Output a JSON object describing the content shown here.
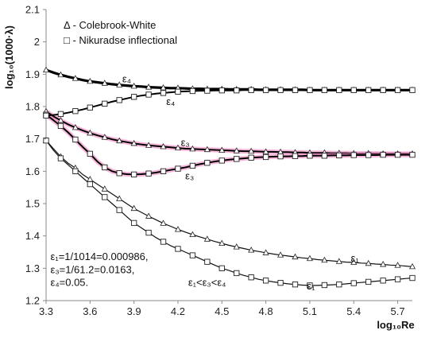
{
  "chart_data": {
    "type": "line",
    "xlabel": "log₁₀Re",
    "ylabel": "log₁₀(1000·λ)",
    "xlim": [
      3.3,
      5.8
    ],
    "ylim": [
      1.2,
      2.1
    ],
    "xticks": [
      "3.3",
      "3.6",
      "3.9",
      "4.2",
      "4.5",
      "4.8",
      "5.1",
      "5.4",
      "5.7"
    ],
    "xtick_values": [
      3.3,
      3.6,
      3.9,
      4.2,
      4.5,
      4.8,
      5.1,
      5.4,
      5.7
    ],
    "yticks": [
      "1.2",
      "1.3",
      "1.4",
      "1.5",
      "1.6",
      "1.7",
      "1.8",
      "1.9",
      "2",
      "2.1"
    ],
    "ytick_values": [
      1.2,
      1.3,
      1.4,
      1.5,
      1.6,
      1.7,
      1.8,
      1.9,
      2.0,
      2.1
    ],
    "grid": false,
    "legend": {
      "position": "top-left",
      "entries": [
        {
          "marker": "triangle",
          "label": "Δ - Colebrook-White"
        },
        {
          "marker": "square",
          "label": "□ - Nikuradse inflectional"
        }
      ]
    },
    "series": [
      {
        "marker": "triangle",
        "line_color": "#111111",
        "halo_color": "",
        "line_width": 1.2,
        "x": [
          3.3,
          3.35,
          3.4,
          3.45,
          3.5,
          3.55,
          3.6,
          3.65,
          3.7,
          3.75,
          3.8,
          3.85,
          3.9,
          3.95,
          4.0,
          4.05,
          4.1,
          4.15,
          4.2,
          4.25,
          4.3,
          4.35,
          4.4,
          4.45,
          4.5,
          4.55,
          4.6,
          4.65,
          4.7,
          4.75,
          4.8,
          4.85,
          4.9,
          4.95,
          5.0,
          5.05,
          5.1,
          5.15,
          5.2,
          5.25,
          5.3,
          5.35,
          5.4,
          5.45,
          5.5,
          5.55,
          5.6,
          5.65,
          5.7,
          5.75,
          5.8
        ],
        "y": [
          1.695,
          1.67,
          1.645,
          1.625,
          1.61,
          1.59,
          1.575,
          1.56,
          1.545,
          1.53,
          1.515,
          1.5,
          1.485,
          1.473,
          1.461,
          1.45,
          1.439,
          1.43,
          1.42,
          1.412,
          1.404,
          1.397,
          1.39,
          1.383,
          1.377,
          1.371,
          1.366,
          1.361,
          1.356,
          1.352,
          1.348,
          1.344,
          1.341,
          1.338,
          1.335,
          1.332,
          1.33,
          1.327,
          1.325,
          1.323,
          1.321,
          1.319,
          1.318,
          1.316,
          1.315,
          1.313,
          1.312,
          1.31,
          1.309,
          1.307,
          1.305
        ]
      },
      {
        "marker": "square",
        "line_color": "#111111",
        "halo_color": "",
        "line_width": 1.2,
        "x": [
          3.3,
          3.35,
          3.4,
          3.45,
          3.5,
          3.55,
          3.6,
          3.65,
          3.7,
          3.75,
          3.8,
          3.85,
          3.9,
          3.95,
          4.0,
          4.05,
          4.1,
          4.15,
          4.2,
          4.25,
          4.3,
          4.35,
          4.4,
          4.45,
          4.5,
          4.55,
          4.6,
          4.65,
          4.7,
          4.75,
          4.8,
          4.85,
          4.9,
          4.95,
          5.0,
          5.05,
          5.1,
          5.15,
          5.2,
          5.25,
          5.3,
          5.35,
          5.4,
          5.45,
          5.5,
          5.55,
          5.6,
          5.65,
          5.7,
          5.75,
          5.8
        ],
        "y": [
          1.695,
          1.665,
          1.64,
          1.62,
          1.6,
          1.58,
          1.56,
          1.54,
          1.52,
          1.5,
          1.48,
          1.46,
          1.44,
          1.425,
          1.41,
          1.395,
          1.382,
          1.37,
          1.36,
          1.35,
          1.34,
          1.33,
          1.32,
          1.31,
          1.3,
          1.293,
          1.285,
          1.278,
          1.272,
          1.266,
          1.262,
          1.258,
          1.255,
          1.252,
          1.25,
          1.248,
          1.247,
          1.247,
          1.248,
          1.249,
          1.25,
          1.252,
          1.254,
          1.256,
          1.258,
          1.26,
          1.262,
          1.264,
          1.266,
          1.268,
          1.27
        ]
      },
      {
        "marker": "triangle",
        "line_color": "#000000",
        "halo_color": "#f07ec0",
        "line_width": 2,
        "x": [
          3.3,
          3.35,
          3.4,
          3.45,
          3.5,
          3.55,
          3.6,
          3.65,
          3.7,
          3.75,
          3.8,
          3.85,
          3.9,
          3.95,
          4.0,
          4.05,
          4.1,
          4.15,
          4.2,
          4.25,
          4.3,
          4.35,
          4.4,
          4.45,
          4.5,
          4.55,
          4.6,
          4.65,
          4.7,
          4.75,
          4.8,
          4.85,
          4.9,
          4.95,
          5.0,
          5.05,
          5.1,
          5.15,
          5.2,
          5.25,
          5.3,
          5.35,
          5.4,
          5.45,
          5.5,
          5.55,
          5.6,
          5.65,
          5.7,
          5.75,
          5.8
        ],
        "y": [
          1.785,
          1.77,
          1.757,
          1.745,
          1.735,
          1.726,
          1.718,
          1.711,
          1.705,
          1.699,
          1.694,
          1.69,
          1.686,
          1.683,
          1.68,
          1.678,
          1.676,
          1.674,
          1.672,
          1.67,
          1.669,
          1.668,
          1.667,
          1.666,
          1.665,
          1.664,
          1.663,
          1.662,
          1.662,
          1.661,
          1.66,
          1.66,
          1.659,
          1.659,
          1.658,
          1.658,
          1.657,
          1.657,
          1.657,
          1.656,
          1.656,
          1.656,
          1.655,
          1.655,
          1.655,
          1.655,
          1.654,
          1.654,
          1.654,
          1.654,
          1.654
        ]
      },
      {
        "marker": "square",
        "line_color": "#000000",
        "halo_color": "#f07ec0",
        "line_width": 2,
        "x": [
          3.3,
          3.35,
          3.4,
          3.45,
          3.5,
          3.55,
          3.6,
          3.65,
          3.7,
          3.75,
          3.8,
          3.85,
          3.9,
          3.95,
          4.0,
          4.05,
          4.1,
          4.15,
          4.2,
          4.25,
          4.3,
          4.35,
          4.4,
          4.45,
          4.5,
          4.55,
          4.6,
          4.65,
          4.7,
          4.75,
          4.8,
          4.85,
          4.9,
          4.95,
          5.0,
          5.05,
          5.1,
          5.15,
          5.2,
          5.25,
          5.3,
          5.35,
          5.4,
          5.45,
          5.5,
          5.55,
          5.6,
          5.65,
          5.7,
          5.75,
          5.8
        ],
        "y": [
          1.775,
          1.758,
          1.74,
          1.72,
          1.698,
          1.675,
          1.654,
          1.63,
          1.612,
          1.6,
          1.594,
          1.591,
          1.59,
          1.591,
          1.593,
          1.596,
          1.6,
          1.604,
          1.608,
          1.612,
          1.617,
          1.622,
          1.626,
          1.63,
          1.633,
          1.636,
          1.638,
          1.64,
          1.642,
          1.643,
          1.644,
          1.645,
          1.646,
          1.646,
          1.647,
          1.647,
          1.648,
          1.648,
          1.648,
          1.649,
          1.649,
          1.649,
          1.65,
          1.65,
          1.65,
          1.65,
          1.651,
          1.651,
          1.651,
          1.651,
          1.651
        ]
      },
      {
        "marker": "triangle",
        "line_color": "#000000",
        "halo_color": "",
        "line_width": 3.2,
        "x": [
          3.3,
          3.35,
          3.4,
          3.45,
          3.5,
          3.55,
          3.6,
          3.65,
          3.7,
          3.75,
          3.8,
          3.85,
          3.9,
          3.95,
          4.0,
          4.05,
          4.1,
          4.15,
          4.2,
          4.25,
          4.3,
          4.35,
          4.4,
          4.45,
          4.5,
          4.55,
          4.6,
          4.65,
          4.7,
          4.75,
          4.8,
          4.85,
          4.9,
          4.95,
          5.0,
          5.05,
          5.1,
          5.15,
          5.2,
          5.25,
          5.3,
          5.35,
          5.4,
          5.45,
          5.5,
          5.55,
          5.6,
          5.65,
          5.7,
          5.75,
          5.8
        ],
        "y": [
          1.913,
          1.905,
          1.898,
          1.892,
          1.887,
          1.882,
          1.878,
          1.875,
          1.872,
          1.869,
          1.867,
          1.865,
          1.863,
          1.862,
          1.86,
          1.859,
          1.858,
          1.857,
          1.857,
          1.856,
          1.855,
          1.855,
          1.854,
          1.854,
          1.854,
          1.853,
          1.853,
          1.853,
          1.853,
          1.852,
          1.852,
          1.852,
          1.852,
          1.852,
          1.852,
          1.852,
          1.851,
          1.851,
          1.851,
          1.851,
          1.851,
          1.851,
          1.851,
          1.851,
          1.851,
          1.851,
          1.851,
          1.851,
          1.851,
          1.851,
          1.851
        ]
      },
      {
        "marker": "square",
        "line_color": "#000000",
        "halo_color": "",
        "line_width": 2,
        "x": [
          3.3,
          3.35,
          3.4,
          3.45,
          3.5,
          3.55,
          3.6,
          3.65,
          3.7,
          3.75,
          3.8,
          3.85,
          3.9,
          3.95,
          4.0,
          4.05,
          4.1,
          4.15,
          4.2,
          4.25,
          4.3,
          4.35,
          4.4,
          4.45,
          4.5,
          4.55,
          4.6,
          4.65,
          4.7,
          4.75,
          4.8,
          4.85,
          4.9,
          4.95,
          5.0,
          5.05,
          5.1,
          5.15,
          5.2,
          5.25,
          5.3,
          5.35,
          5.4,
          5.45,
          5.5,
          5.55,
          5.6,
          5.65,
          5.7,
          5.75,
          5.8
        ],
        "y": [
          1.772,
          1.774,
          1.777,
          1.781,
          1.786,
          1.791,
          1.797,
          1.803,
          1.809,
          1.815,
          1.82,
          1.825,
          1.83,
          1.834,
          1.837,
          1.84,
          1.842,
          1.844,
          1.846,
          1.847,
          1.848,
          1.849,
          1.849,
          1.85,
          1.85,
          1.85,
          1.85,
          1.851,
          1.851,
          1.851,
          1.851,
          1.851,
          1.851,
          1.851,
          1.851,
          1.851,
          1.851,
          1.851,
          1.851,
          1.851,
          1.851,
          1.851,
          1.851,
          1.851,
          1.851,
          1.851,
          1.851,
          1.851,
          1.851,
          1.851,
          1.851
        ]
      }
    ],
    "annotations": [
      {
        "text": "ε₄",
        "x": 3.82,
        "y": 1.875
      },
      {
        "text": "ε₄",
        "x": 4.12,
        "y": 1.805
      },
      {
        "text": "ε₃",
        "x": 4.22,
        "y": 1.678
      },
      {
        "text": "ε₃",
        "x": 4.25,
        "y": 1.575
      },
      {
        "text": "ε₁",
        "x": 5.38,
        "y": 1.32
      },
      {
        "text": "ε₁",
        "x": 5.08,
        "y": 1.235
      },
      {
        "text": "ε₁<ε₃<ε₄",
        "x": 4.27,
        "y": 1.245
      },
      {
        "text": "ε₁=1/1014=0.000986,",
        "x": 3.33,
        "y": 1.325
      },
      {
        "text": "ε₃=1/61.2=0.0163,",
        "x": 3.33,
        "y": 1.285
      },
      {
        "text": "ε₄=0.05.",
        "x": 3.33,
        "y": 1.245
      }
    ]
  }
}
